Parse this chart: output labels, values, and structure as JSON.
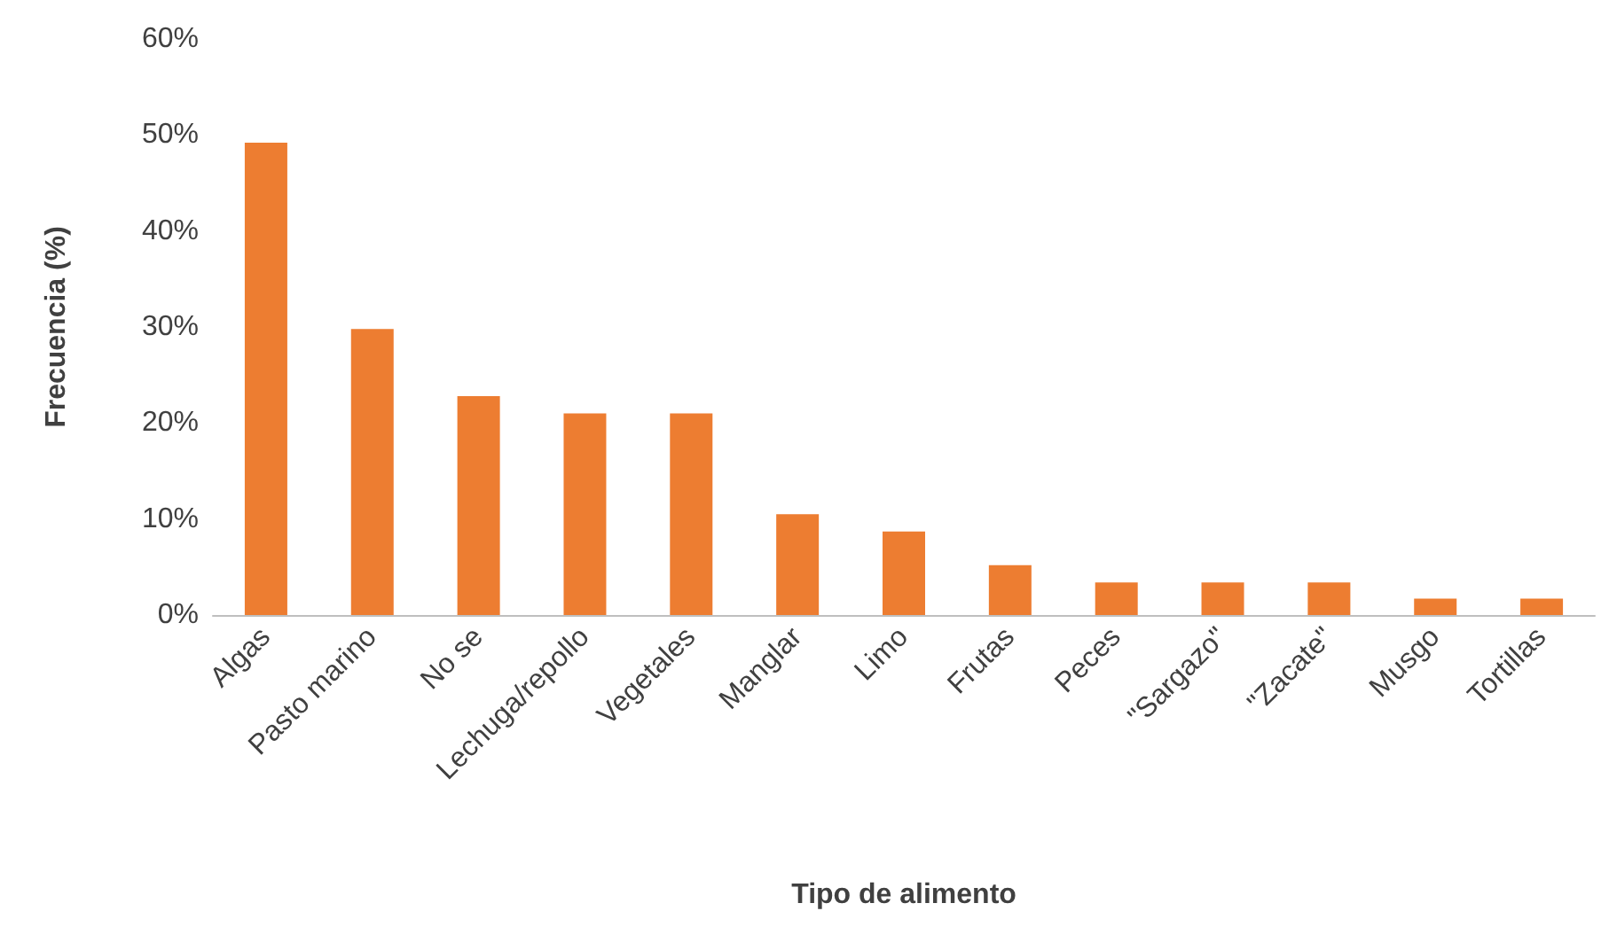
{
  "chart_data": {
    "type": "bar",
    "xlabel": "Tipo de alimento",
    "ylabel": "Frecuencia (%)",
    "categories": [
      "Algas",
      "Pasto marino",
      "No se",
      "Lechuga/repollo",
      "Vegetales",
      "Manglar",
      "Limo",
      "Frutas",
      "Peces",
      "\"Sargazo\"",
      "\"Zacate\"",
      "Musgo",
      "Tortillas"
    ],
    "values": [
      49.2,
      29.8,
      22.8,
      21,
      21,
      10.5,
      8.7,
      5.2,
      3.4,
      3.4,
      3.4,
      1.7,
      1.7
    ],
    "color": "#ed7d31",
    "ylim": [
      0,
      60
    ],
    "yticks": [
      {
        "value": 0,
        "label": "0%"
      },
      {
        "value": 10,
        "label": "10%"
      },
      {
        "value": 20,
        "label": "20%"
      },
      {
        "value": 30,
        "label": "30%"
      },
      {
        "value": 40,
        "label": "40%"
      },
      {
        "value": 50,
        "label": "50%"
      },
      {
        "value": 60,
        "label": "60%"
      }
    ],
    "grid": false
  }
}
